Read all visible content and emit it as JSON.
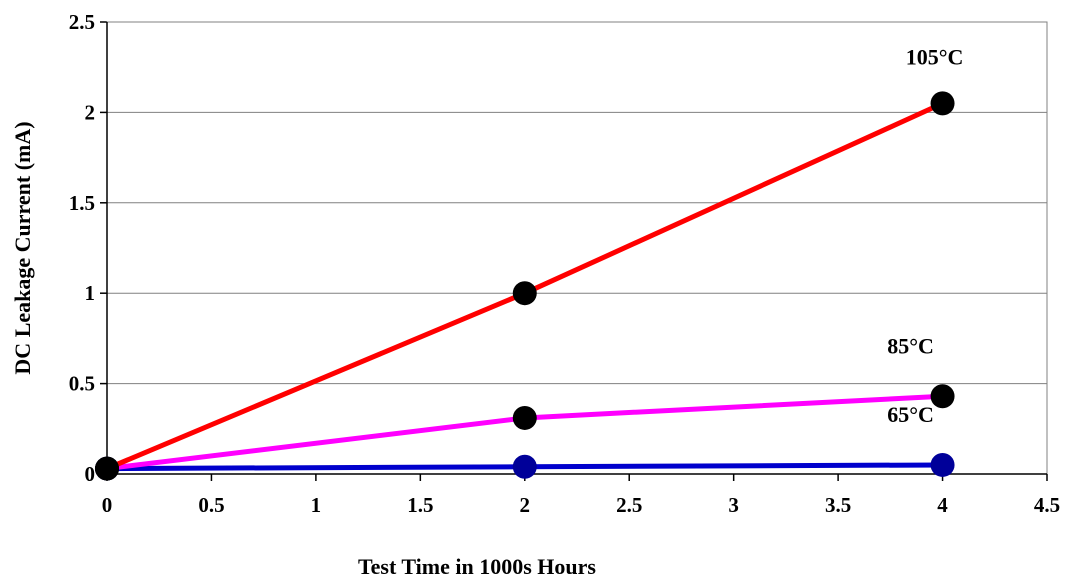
{
  "chart_data": {
    "type": "line",
    "title": "",
    "xlabel": "Test Time in 1000s Hours",
    "ylabel": "DC Leakage Current (mA)",
    "xlim": [
      0,
      4.5
    ],
    "ylim": [
      0,
      2.5
    ],
    "x_ticks": [
      "0",
      "0.5",
      "1",
      "1.5",
      "2",
      "2.5",
      "3",
      "3.5",
      "4",
      "4.5"
    ],
    "y_ticks": [
      "0",
      "0.5",
      "1",
      "1.5",
      "2",
      "2.5"
    ],
    "grid": "horizontal",
    "legend": "none",
    "series": [
      {
        "name": "105°C",
        "color": "#ff0000",
        "marker_color": "#000000",
        "x": [
          0,
          2,
          4
        ],
        "y": [
          0.03,
          1.0,
          2.05
        ]
      },
      {
        "name": "85°C",
        "color": "#ff00ff",
        "marker_color": "#000000",
        "x": [
          0,
          2,
          4
        ],
        "y": [
          0.03,
          0.31,
          0.43
        ]
      },
      {
        "name": "65°C",
        "color": "#0000cc",
        "marker_color": "#000099",
        "x": [
          0,
          2,
          4
        ],
        "y": [
          0.03,
          0.04,
          0.05
        ]
      }
    ]
  }
}
